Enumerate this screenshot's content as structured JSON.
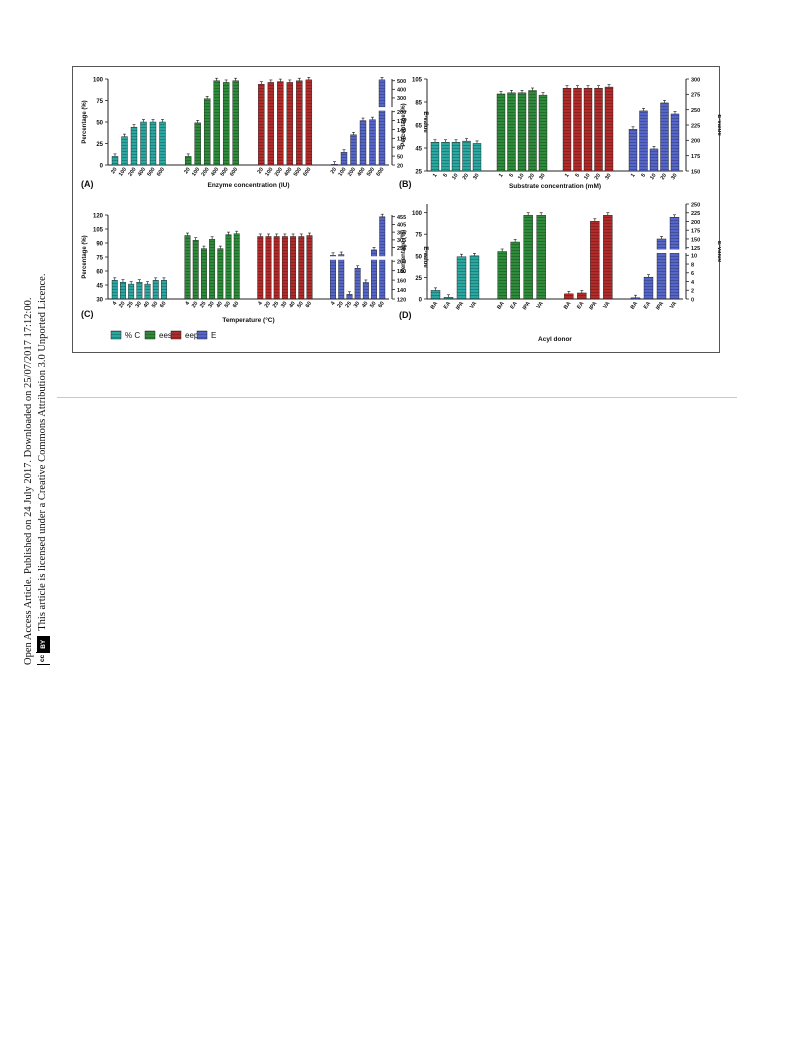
{
  "sidebar": {
    "line1": "Open Access Article. Published on 24 July 2017. Downloaded on 25/07/2017 17:12:00.",
    "line2": "This article is licensed under a Creative Commons Attribution 3.0 Unported Licence.",
    "badge_cc": "cc",
    "badge_by": "BY"
  },
  "colors": {
    "conv": "#2aa7a0",
    "ees": "#2e8b3a",
    "eep": "#b22b2b",
    "E": "#5566c8"
  },
  "legend": [
    {
      "label": "% C",
      "color": "#2aa7a0"
    },
    {
      "label": "ees",
      "color": "#2e8b3a"
    },
    {
      "label": "eep",
      "color": "#b22b2b"
    },
    {
      "label": "E",
      "color": "#5566c8"
    }
  ],
  "chart_data": [
    {
      "type": "bar",
      "panel": "(A)",
      "xlabel": "Enzyme concentration (IU)",
      "ylabel": "Percentage (%)",
      "y2label": "E-value",
      "ylim": [
        0,
        100
      ],
      "yticks": [
        "0",
        "25",
        "50",
        "75",
        "100"
      ],
      "y2ticks": [
        "20",
        "50",
        "80",
        "110",
        "140",
        "170",
        "200",
        "300",
        "400",
        "500"
      ],
      "categories": [
        "20",
        "100",
        "200",
        "400",
        "500",
        "600"
      ],
      "series": [
        {
          "name": "% C",
          "values": [
            10,
            33,
            44,
            50,
            50,
            50
          ]
        },
        {
          "name": "ees",
          "values": [
            10,
            49,
            77,
            98,
            96,
            98
          ]
        },
        {
          "name": "eep",
          "values": [
            94,
            96,
            97,
            96,
            98,
            99
          ]
        },
        {
          "name": "E",
          "values": [
            22,
            63,
            122,
            170,
            173,
            510
          ]
        }
      ]
    },
    {
      "type": "bar",
      "panel": "(B)",
      "xlabel": "Substrate concentration (mM)",
      "ylabel": "Percentage (%)",
      "y2label": "E-value",
      "ylim": [
        25,
        105
      ],
      "yticks": [
        "25",
        "45",
        "65",
        "85",
        "105"
      ],
      "y2ticks": [
        "150",
        "175",
        "200",
        "225",
        "250",
        "275",
        "300"
      ],
      "categories": [
        "1",
        "5",
        "10",
        "20",
        "30"
      ],
      "series": [
        {
          "name": "% C",
          "values": [
            50,
            50,
            50,
            51,
            49
          ]
        },
        {
          "name": "ees",
          "values": [
            92,
            93,
            93,
            95,
            91
          ]
        },
        {
          "name": "eep",
          "values": [
            97,
            97,
            97,
            97,
            98
          ]
        },
        {
          "name": "E",
          "values": [
            218,
            248,
            186,
            261,
            243
          ]
        }
      ]
    },
    {
      "type": "bar",
      "panel": "(C)",
      "xlabel": "Temperature (°C)",
      "ylabel": "Percentage (%)",
      "y2label": "E-value",
      "ylim": [
        30,
        120
      ],
      "yticks": [
        "30",
        "45",
        "60",
        "75",
        "90",
        "105",
        "120"
      ],
      "y2ticks": [
        "120",
        "140",
        "160",
        "180",
        "200",
        "255",
        "305",
        "355",
        "405",
        "455"
      ],
      "categories": [
        "4",
        "20",
        "25",
        "30",
        "40",
        "50",
        "60"
      ],
      "series": [
        {
          "name": "% C",
          "values": [
            50,
            48,
            46,
            48,
            46,
            50,
            50
          ]
        },
        {
          "name": "ees",
          "values": [
            98,
            93,
            84,
            94,
            84,
            99,
            100
          ]
        },
        {
          "name": "eep",
          "values": [
            97,
            97,
            97,
            97,
            97,
            97,
            98
          ]
        },
        {
          "name": "E",
          "values": [
            205,
            210,
            130,
            185,
            155,
            240,
            455
          ]
        }
      ]
    },
    {
      "type": "bar",
      "panel": "(D)",
      "xlabel": "Acyl donor",
      "ylabel": "Percentage (%)",
      "y2label": "E-value",
      "ylim": [
        0,
        110
      ],
      "yticks": [
        "0",
        "25",
        "50",
        "75",
        "100"
      ],
      "y2ticks": [
        "0",
        "2",
        "4",
        "6",
        "8",
        "10",
        "125",
        "150",
        "175",
        "200",
        "225",
        "250"
      ],
      "categories": [
        "BA",
        "EA",
        "IPA",
        "VA"
      ],
      "series": [
        {
          "name": "% C",
          "values": [
            10,
            2,
            49,
            50
          ]
        },
        {
          "name": "ees",
          "values": [
            55,
            66,
            97,
            97
          ]
        },
        {
          "name": "eep",
          "values": [
            6,
            7,
            90,
            97
          ]
        },
        {
          "name": "E",
          "values": [
            0.3,
            5,
            150,
            212
          ]
        }
      ]
    }
  ]
}
